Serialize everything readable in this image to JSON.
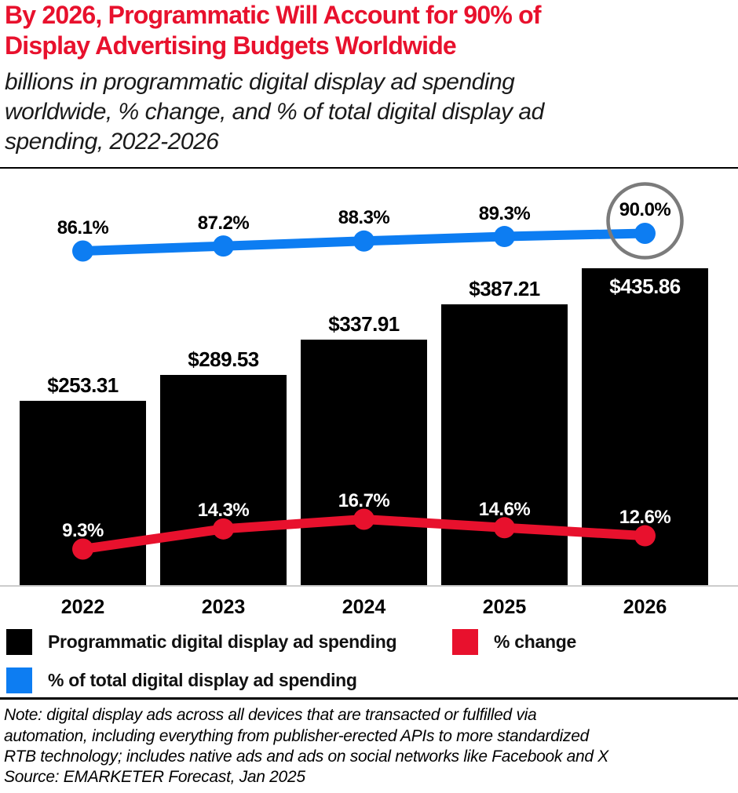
{
  "header": {
    "title": "By 2026, Programmatic Will Account for 90% of\nDisplay Advertising Budgets Worldwide",
    "subtitle": "billions in programmatic digital display ad spending\nworldwide, % change, and % of total digital display ad\nspending, 2022-2026"
  },
  "chart_data": {
    "type": "bar",
    "title": "By 2026, Programmatic Will Account for 90% of Display Advertising Budgets Worldwide",
    "subtitle": "billions in programmatic digital display ad spending worldwide, % change, and % of total digital display ad spending, 2022-2026",
    "categories": [
      "2022",
      "2023",
      "2024",
      "2025",
      "2026"
    ],
    "series": [
      {
        "name": "Programmatic digital display ad spending",
        "type": "bar",
        "unit": "USD billions",
        "color": "#000000",
        "values": [
          253.31,
          289.53,
          337.91,
          387.21,
          435.86
        ],
        "labels": [
          "$253.31",
          "$289.53",
          "$337.91",
          "$387.21",
          "$435.86"
        ]
      },
      {
        "name": "% change",
        "type": "line",
        "unit": "percent",
        "color": "#e8112d",
        "values": [
          9.3,
          14.3,
          16.7,
          14.6,
          12.6
        ],
        "labels": [
          "9.3%",
          "14.3%",
          "16.7%",
          "14.6%",
          "12.6%"
        ]
      },
      {
        "name": "% of total digital display ad spending",
        "type": "line",
        "unit": "percent",
        "color": "#0d7df2",
        "values": [
          86.1,
          87.2,
          88.3,
          89.3,
          90.0
        ],
        "labels": [
          "86.1%",
          "87.2%",
          "88.3%",
          "89.3%",
          "90.0%"
        ],
        "annotation": {
          "type": "circle",
          "index": 4,
          "color": "#7b7b7b"
        }
      }
    ],
    "bar_value_axis_range": [
      0,
      470
    ],
    "grid": false,
    "legend_position": "bottom",
    "last_bar_label_inside": true
  },
  "footer": {
    "note": "Note: digital display ads across all devices that are transacted or fulfilled via\nautomation, including everything from publisher-erected APIs to more standardized\nRTB technology; includes native ads and ads on social networks like Facebook and X",
    "source": "Source: EMARKETER Forecast, Jan 2025"
  }
}
